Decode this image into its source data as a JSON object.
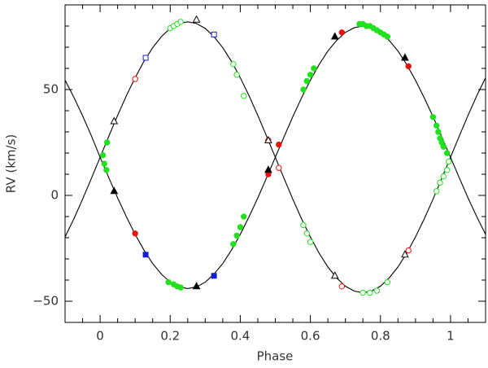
{
  "chart_data": {
    "type": "scatter",
    "x_label": "Phase",
    "y_label": "RV (km/s)",
    "xlim": [
      -0.1,
      1.1
    ],
    "ylim": [
      -60,
      90
    ],
    "xticks": [
      0,
      0.2,
      0.4,
      0.6,
      0.8,
      1
    ],
    "yticks": [
      {
        "value": -50,
        "label": "−50"
      },
      0,
      50
    ],
    "xminorticks": [
      -0.05,
      0.05,
      0.1,
      0.15,
      0.25,
      0.3,
      0.35,
      0.45,
      0.5,
      0.55,
      0.65,
      0.7,
      0.75,
      0.85,
      0.9,
      0.95,
      1.05
    ],
    "yminorticks": [
      -60,
      -40,
      -30,
      -20,
      -10,
      10,
      20,
      30,
      40,
      60,
      70,
      80,
      90
    ],
    "lines": [
      {
        "color": "#000000",
        "x": [
          -0.1,
          -0.075,
          -0.05,
          -0.025,
          0,
          0.025,
          0.05,
          0.075,
          0.1,
          0.125,
          0.15,
          0.175,
          0.2,
          0.225,
          0.25,
          0.275,
          0.3,
          0.325,
          0.35,
          0.375,
          0.4,
          0.425,
          0.45,
          0.475,
          0.5,
          0.525,
          0.55,
          0.575,
          0.6,
          0.625,
          0.65,
          0.675,
          0.7,
          0.725,
          0.75,
          0.775,
          0.8,
          0.825,
          0.85,
          0.875,
          0.9,
          0.925,
          0.95,
          0.975,
          1,
          1.025,
          1.05,
          1.075,
          1.1
        ],
        "values": [
          -19.6,
          -11.1,
          -1.8,
          8,
          18,
          28,
          37.8,
          47.1,
          55.6,
          63.3,
          69.8,
          75,
          78.9,
          81.2,
          82,
          81.2,
          78.9,
          75,
          69.8,
          63.3,
          55.6,
          47.1,
          37.8,
          28,
          18,
          8,
          -1.8,
          -11.1,
          -19.6,
          -27.3,
          -33.8,
          -39,
          -42.9,
          -45.2,
          -46,
          -45.2,
          -42.9,
          -39,
          -33.8,
          -27.3,
          -19.6,
          -11.1,
          -1.8,
          8,
          18,
          28,
          37.8,
          47.1,
          55.6
        ]
      },
      {
        "color": "#000000",
        "x": [
          -0.1,
          -0.075,
          -0.05,
          -0.025,
          0,
          0.025,
          0.05,
          0.075,
          0.1,
          0.125,
          0.15,
          0.175,
          0.2,
          0.225,
          0.25,
          0.275,
          0.3,
          0.325,
          0.35,
          0.375,
          0.4,
          0.425,
          0.45,
          0.475,
          0.5,
          0.525,
          0.55,
          0.575,
          0.6,
          0.625,
          0.65,
          0.675,
          0.7,
          0.725,
          0.75,
          0.775,
          0.8,
          0.825,
          0.85,
          0.875,
          0.9,
          0.925,
          0.95,
          0.975,
          1,
          1.025,
          1.05,
          1.075,
          1.1
        ],
        "values": [
          54.4,
          46.4,
          37.6,
          28.2,
          18,
          8.3,
          -1.2,
          -10.1,
          -18.4,
          -25.8,
          -32.2,
          -37.2,
          -41,
          -43.2,
          -44,
          -43.2,
          -41,
          -37.2,
          -32.2,
          -25.8,
          -18.4,
          -10.1,
          -1.2,
          8.3,
          18,
          27.7,
          37.2,
          46.1,
          54.4,
          61.8,
          68.2,
          73.2,
          77,
          79.2,
          80,
          79.2,
          77,
          73.2,
          68.2,
          61.8,
          54.4,
          46.1,
          37.2,
          27.7,
          18,
          8.3,
          -1.2,
          -10.1,
          -18.4
        ]
      }
    ],
    "series": [
      {
        "color": "#22e01e",
        "marker": "circle",
        "filled": true,
        "x": [
          0.008,
          0.012,
          0.018,
          0.02,
          0.195,
          0.21,
          0.22,
          0.23,
          0.38,
          0.39,
          0.4,
          0.41,
          0.58,
          0.59,
          0.6,
          0.61,
          0.74,
          0.75,
          0.76,
          0.77,
          0.78,
          0.79,
          0.8,
          0.81,
          0.82,
          0.95,
          0.96,
          0.965,
          0.97,
          0.975,
          0.98,
          0.99
        ],
        "values": [
          19,
          15,
          12,
          25,
          -41,
          -42,
          -43,
          -43.5,
          -23,
          -19,
          -15,
          -10,
          50,
          54,
          57,
          60,
          81,
          81,
          80,
          80,
          79,
          78,
          77,
          76,
          75,
          37,
          33,
          30,
          27,
          25,
          23,
          20
        ]
      },
      {
        "color": "#22e01e",
        "marker": "circle",
        "filled": false,
        "x": [
          0.2,
          0.21,
          0.22,
          0.23,
          0.38,
          0.39,
          0.41,
          0.58,
          0.59,
          0.6,
          0.75,
          0.77,
          0.79,
          0.82,
          0.96,
          0.97,
          0.98,
          0.99,
          0.995
        ],
        "values": [
          79,
          80,
          81,
          82,
          62,
          57,
          47,
          -14,
          -18,
          -22,
          -46,
          -46,
          -45,
          -41,
          2,
          6,
          9,
          12,
          16
        ]
      },
      {
        "color": "#e8120c",
        "marker": "circle",
        "filled": true,
        "x": [
          0.1,
          0.48,
          0.51,
          0.69,
          0.88
        ],
        "values": [
          -18,
          10,
          24,
          77,
          61
        ]
      },
      {
        "color": "#e8120c",
        "marker": "circle",
        "filled": false,
        "x": [
          0.1,
          0.48,
          0.51,
          0.69,
          0.88
        ],
        "values": [
          55,
          26,
          13,
          -43,
          -26
        ]
      },
      {
        "color": "#1020d0",
        "marker": "square",
        "filled": true,
        "x": [
          0.13,
          0.325
        ],
        "values": [
          -28,
          -38
        ]
      },
      {
        "color": "#1020d0",
        "marker": "square",
        "filled": false,
        "x": [
          0.13,
          0.325
        ],
        "values": [
          65,
          76
        ]
      },
      {
        "color": "#000000",
        "marker": "triangle",
        "filled": true,
        "x": [
          0.04,
          0.275,
          0.48,
          0.67,
          0.87
        ],
        "values": [
          2,
          -43,
          12,
          75,
          65
        ]
      },
      {
        "color": "#000000",
        "marker": "triangle",
        "filled": false,
        "x": [
          0.04,
          0.275,
          0.48,
          0.67,
          0.87
        ],
        "values": [
          35,
          83,
          26,
          -38,
          -28
        ]
      }
    ]
  }
}
